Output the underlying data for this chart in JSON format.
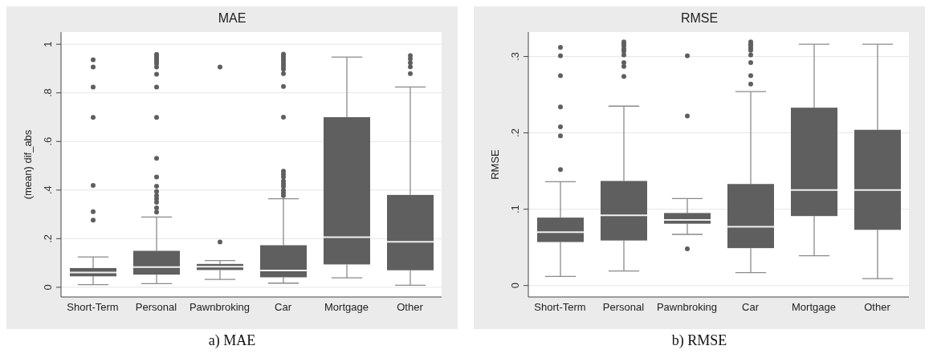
{
  "chart_data": [
    {
      "type": "box",
      "title": "MAE",
      "ylabel": "(mean) dif_abs",
      "annotations": [
        "a) MAE"
      ],
      "color": "#5f5f5f",
      "grid": "y",
      "categories": [
        "Short-Term",
        "Personal",
        "Pawnbroking",
        "Car",
        "Mortgage",
        "Other"
      ],
      "ylim": [
        -0.04,
        1.05
      ],
      "yticks": [
        {
          "value": 0,
          "label": "0"
        },
        {
          "value": 0.2,
          "label": ".2"
        },
        {
          "value": 0.4,
          "label": ".4"
        },
        {
          "value": 0.6,
          "label": ".6"
        },
        {
          "value": 0.8,
          "label": ".8"
        },
        {
          "value": 1,
          "label": "1"
        }
      ],
      "boxes": [
        {
          "low": 0.011,
          "q1": 0.045,
          "median": 0.061,
          "q3": 0.079,
          "high": 0.125,
          "outliers": [
            0.936,
            0.906,
            0.824,
            0.699,
            0.419,
            0.311,
            0.276
          ]
        },
        {
          "low": 0.015,
          "q1": 0.052,
          "median": 0.083,
          "q3": 0.15,
          "high": 0.289,
          "outliers": [
            0.958,
            0.95,
            0.94,
            0.93,
            0.92,
            0.906,
            0.877,
            0.824,
            0.699,
            0.531,
            0.454,
            0.416,
            0.394,
            0.377,
            0.364,
            0.35,
            0.327,
            0.309
          ]
        },
        {
          "low": 0.032,
          "q1": 0.071,
          "median": 0.085,
          "q3": 0.096,
          "high": 0.11,
          "outliers": [
            0.906,
            0.186
          ]
        },
        {
          "low": 0.017,
          "q1": 0.041,
          "median": 0.069,
          "q3": 0.173,
          "high": 0.364,
          "outliers": [
            0.959,
            0.95,
            0.939,
            0.93,
            0.919,
            0.908,
            0.897,
            0.879,
            0.826,
            0.7,
            0.478,
            0.465,
            0.454,
            0.437,
            0.426,
            0.415,
            0.399,
            0.388,
            0.377
          ]
        },
        {
          "low": 0.039,
          "q1": 0.094,
          "median": 0.206,
          "q3": 0.7,
          "high": 0.947
        },
        {
          "low": 0.008,
          "q1": 0.07,
          "median": 0.187,
          "q3": 0.38,
          "high": 0.824,
          "outliers": [
            0.953,
            0.94,
            0.924,
            0.907,
            0.879
          ]
        }
      ]
    },
    {
      "type": "box",
      "title": "RMSE",
      "ylabel": "RMSE",
      "annotations": [
        "b) RMSE"
      ],
      "color": "#5f5f5f",
      "grid": "y",
      "categories": [
        "Short-Term",
        "Personal",
        "Pawnbroking",
        "Car",
        "Mortgage",
        "Other"
      ],
      "ylim": [
        -0.015,
        0.332
      ],
      "yticks": [
        {
          "value": 0,
          "label": "0"
        },
        {
          "value": 0.1,
          "label": ".1"
        },
        {
          "value": 0.2,
          "label": ".2"
        },
        {
          "value": 0.3,
          "label": ".3"
        }
      ],
      "boxes": [
        {
          "low": 0.012,
          "q1": 0.057,
          "median": 0.07,
          "q3": 0.089,
          "high": 0.136,
          "outliers": [
            0.312,
            0.301,
            0.275,
            0.234,
            0.208,
            0.196,
            0.152
          ]
        },
        {
          "low": 0.019,
          "q1": 0.059,
          "median": 0.092,
          "q3": 0.137,
          "high": 0.235,
          "outliers": [
            0.319,
            0.316,
            0.314,
            0.31,
            0.307,
            0.302,
            0.292,
            0.287,
            0.274
          ]
        },
        {
          "low": 0.067,
          "q1": 0.081,
          "median": 0.086,
          "q3": 0.095,
          "high": 0.114,
          "outliers": [
            0.301,
            0.222,
            0.048
          ]
        },
        {
          "low": 0.017,
          "q1": 0.049,
          "median": 0.077,
          "q3": 0.133,
          "high": 0.254,
          "outliers": [
            0.319,
            0.316,
            0.314,
            0.311,
            0.308,
            0.302,
            0.292,
            0.275,
            0.264
          ]
        },
        {
          "low": 0.039,
          "q1": 0.091,
          "median": 0.125,
          "q3": 0.233,
          "high": 0.316
        },
        {
          "low": 0.009,
          "q1": 0.073,
          "median": 0.125,
          "q3": 0.204,
          "high": 0.316
        }
      ]
    }
  ]
}
